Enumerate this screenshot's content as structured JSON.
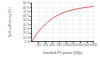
{
  "chart_data": {
    "type": "line",
    "xlabel": "Installed PV power (kWp)",
    "ylabel": "Self-sufficiency (%)",
    "x": [
      0,
      50,
      100,
      150,
      200,
      300,
      400,
      500,
      600,
      700,
      800,
      900,
      1000,
      1100,
      1200,
      1300,
      1400,
      1500,
      1600,
      1700,
      1800
    ],
    "values": [
      0,
      7,
      13,
      19,
      24,
      33,
      41,
      48,
      54,
      59,
      63,
      67,
      70,
      72,
      74,
      76,
      77.5,
      79,
      80,
      81,
      82
    ],
    "color": "#d04040",
    "xlim": [
      0,
      1800
    ],
    "ylim": [
      0,
      90
    ],
    "xticks": [
      200,
      400,
      600,
      800,
      1000,
      1200,
      1400,
      1600,
      1800
    ],
    "yticks": [
      {
        "value": 0,
        "label": "0 %"
      },
      {
        "value": 10,
        "label": "10 %"
      },
      {
        "value": 20,
        "label": "20 %"
      },
      {
        "value": 30,
        "label": "30 %"
      },
      {
        "value": 40,
        "label": "40 %"
      },
      {
        "value": 50,
        "label": "50 %"
      },
      {
        "value": 60,
        "label": "60 %"
      },
      {
        "value": 70,
        "label": "70 %"
      },
      {
        "value": 80,
        "label": "80 %"
      },
      {
        "value": 90,
        "label": "90 %"
      }
    ],
    "grid": true
  }
}
